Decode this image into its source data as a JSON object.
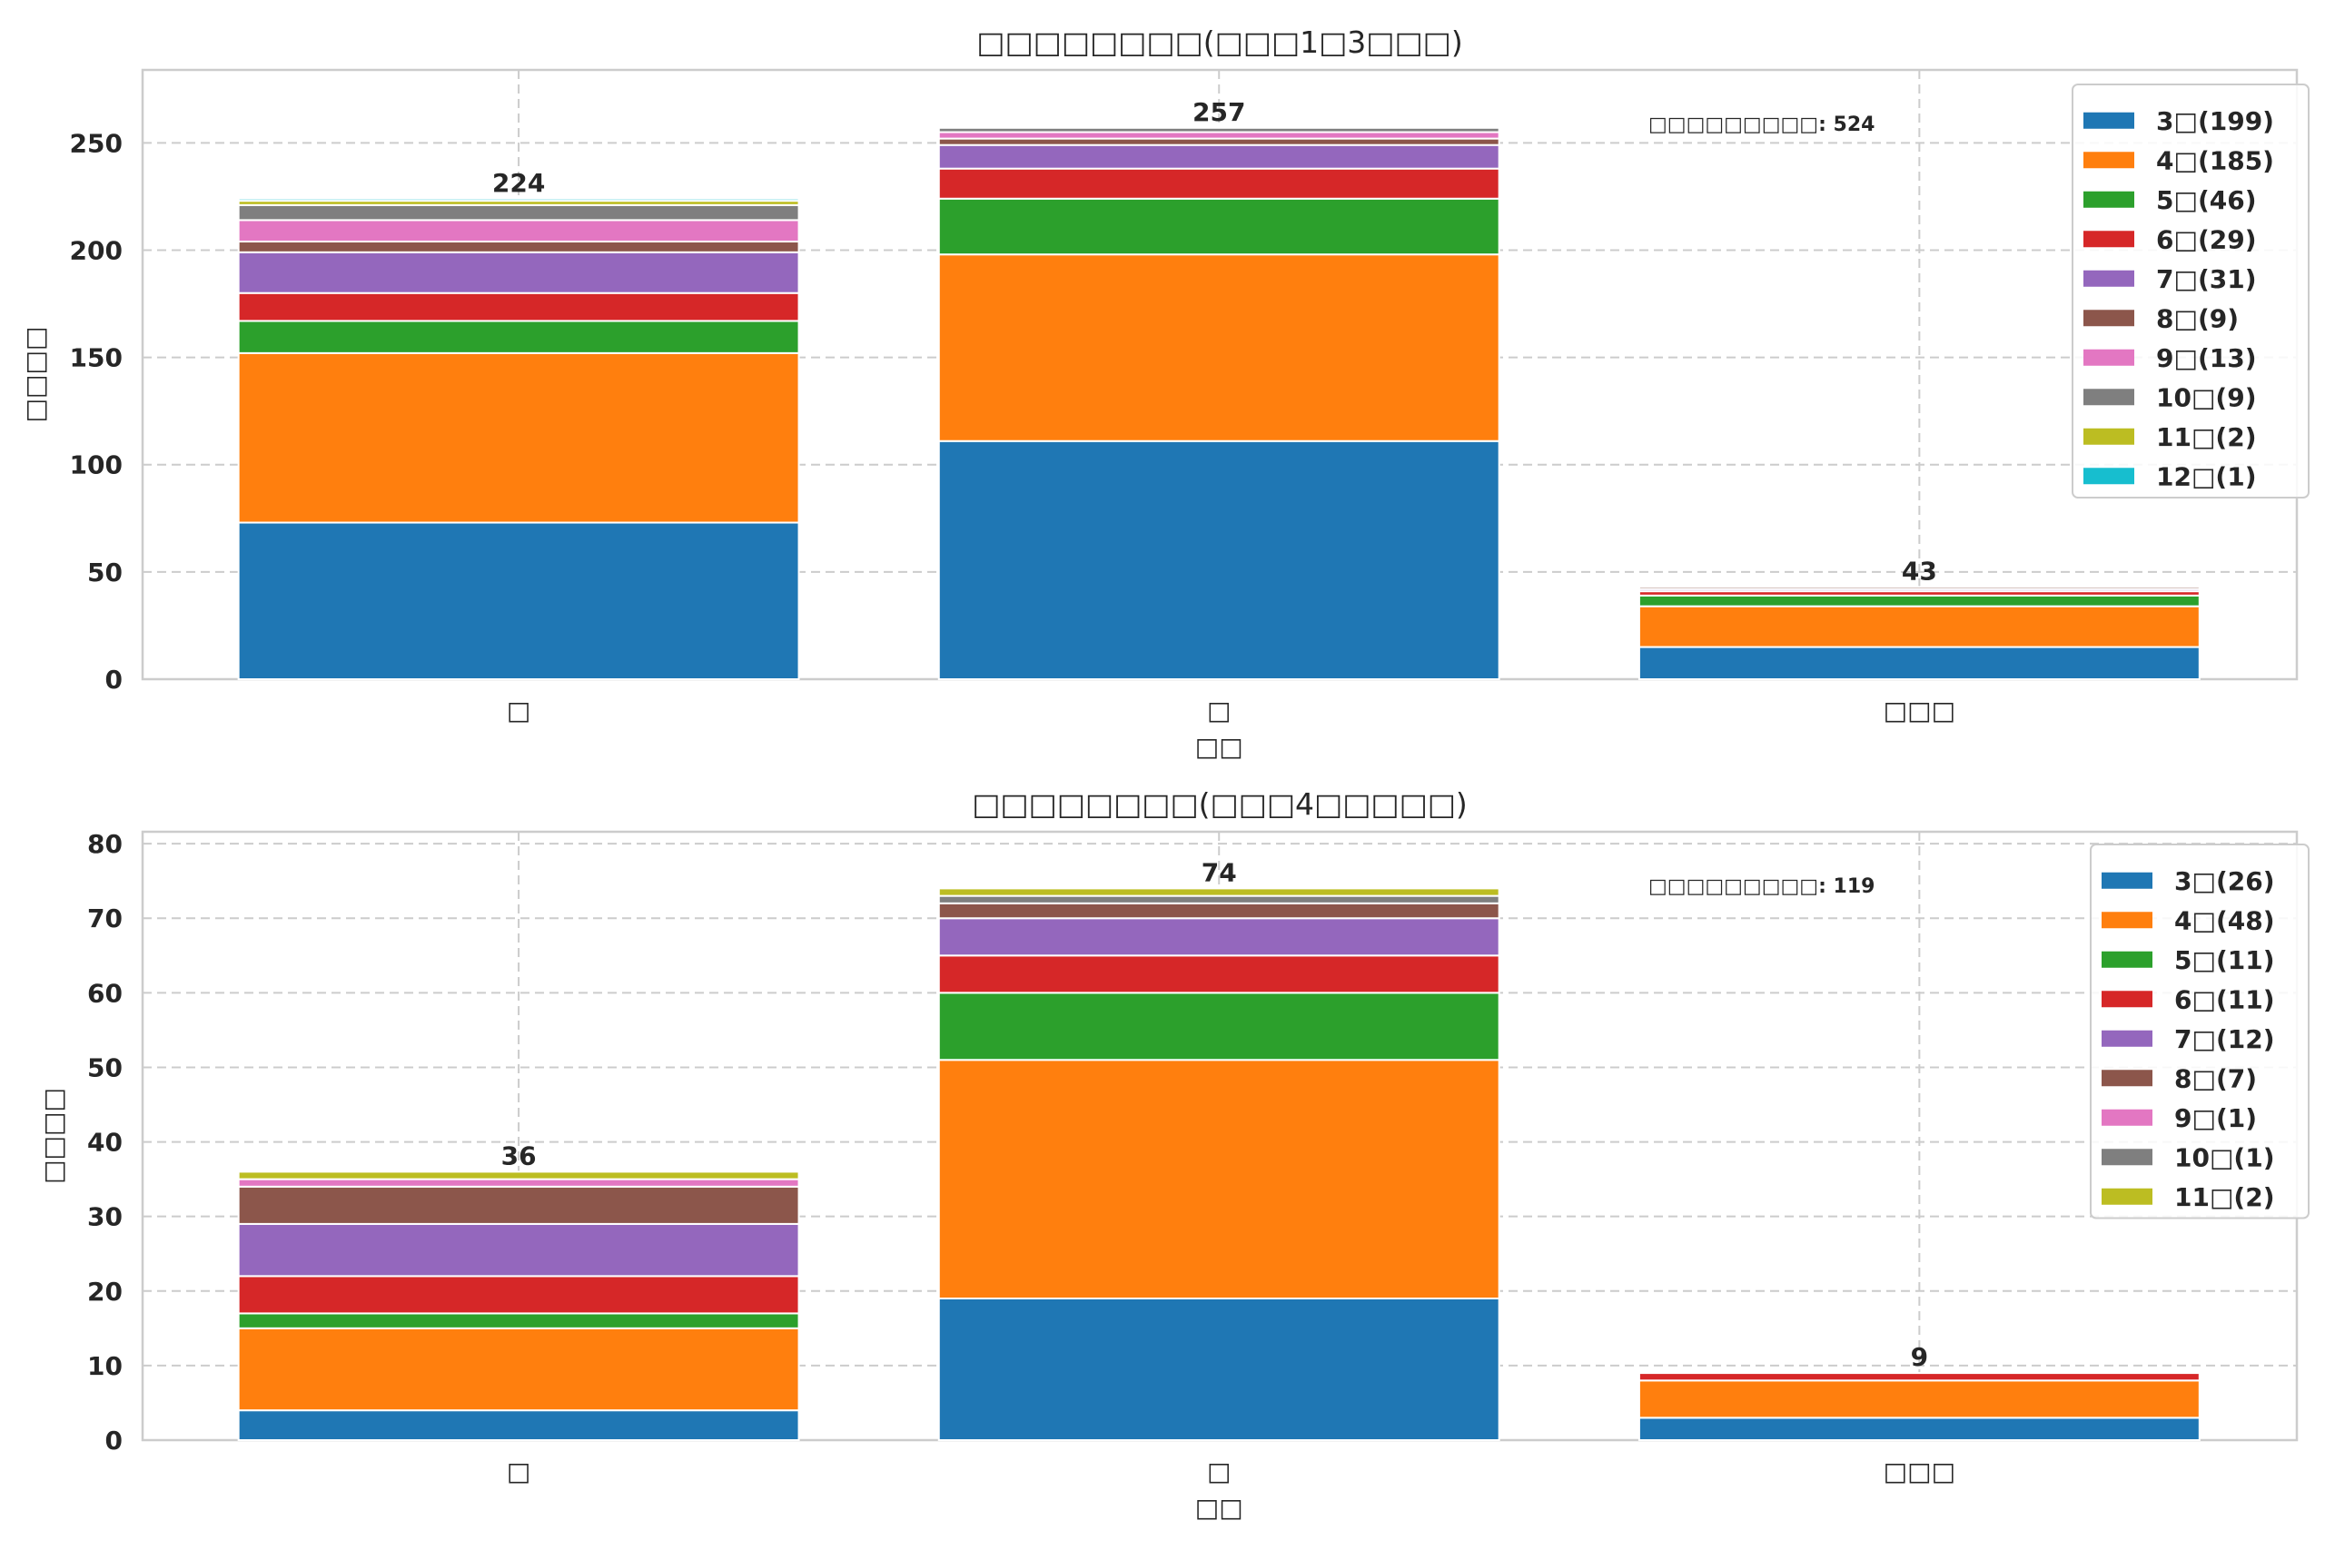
{
  "chart_data": [
    {
      "type": "bar",
      "stacked": true,
      "title": "□□□□□□□□(□□□1□3□□□)",
      "xlabel": "□□",
      "ylabel": "□□□□",
      "categories": [
        "□",
        "□",
        "□□□"
      ],
      "ylim": [
        0,
        284
      ],
      "yticks": [
        0,
        50,
        100,
        150,
        200,
        250
      ],
      "grid": true,
      "legend_position": "top-right",
      "annotation": "□□□□□□□□□: 524",
      "totals": [
        224,
        257,
        43
      ],
      "series": [
        {
          "name": "3□(199)",
          "color": "#1f77b4",
          "values": [
            73,
            111,
            15
          ]
        },
        {
          "name": "4□(185)",
          "color": "#ff7f0e",
          "values": [
            79,
            87,
            19
          ]
        },
        {
          "name": "5□(46)",
          "color": "#2ca02c",
          "values": [
            15,
            26,
            5
          ]
        },
        {
          "name": "6□(29)",
          "color": "#d62728",
          "values": [
            13,
            14,
            2
          ]
        },
        {
          "name": "7□(31)",
          "color": "#9467bd",
          "values": [
            19,
            11,
            1
          ]
        },
        {
          "name": "8□(9)",
          "color": "#8c564b",
          "values": [
            5,
            3,
            1
          ]
        },
        {
          "name": "9□(13)",
          "color": "#e377c2",
          "values": [
            10,
            3,
            0
          ]
        },
        {
          "name": "10□(9)",
          "color": "#7f7f7f",
          "values": [
            7,
            2,
            0
          ]
        },
        {
          "name": "11□(2)",
          "color": "#bcbd22",
          "values": [
            2,
            0,
            0
          ]
        },
        {
          "name": "12□(1)",
          "color": "#17becf",
          "values": [
            1,
            0,
            0
          ]
        }
      ]
    },
    {
      "type": "bar",
      "stacked": true,
      "title": "□□□□□□□□(□□□4□□□□□)",
      "xlabel": "□□",
      "ylabel": "□□□□",
      "categories": [
        "□",
        "□",
        "□□□"
      ],
      "ylim": [
        0,
        81.6
      ],
      "yticks": [
        0,
        10,
        20,
        30,
        40,
        50,
        60,
        70,
        80
      ],
      "grid": true,
      "legend_position": "top-right",
      "annotation": "□□□□□□□□□: 119",
      "totals": [
        36,
        74,
        9
      ],
      "series": [
        {
          "name": "3□(26)",
          "color": "#1f77b4",
          "values": [
            4,
            19,
            3
          ]
        },
        {
          "name": "4□(48)",
          "color": "#ff7f0e",
          "values": [
            11,
            32,
            5
          ]
        },
        {
          "name": "5□(11)",
          "color": "#2ca02c",
          "values": [
            2,
            9,
            0
          ]
        },
        {
          "name": "6□(11)",
          "color": "#d62728",
          "values": [
            5,
            5,
            1
          ]
        },
        {
          "name": "7□(12)",
          "color": "#9467bd",
          "values": [
            7,
            5,
            0
          ]
        },
        {
          "name": "8□(7)",
          "color": "#8c564b",
          "values": [
            5,
            2,
            0
          ]
        },
        {
          "name": "9□(1)",
          "color": "#e377c2",
          "values": [
            1,
            0,
            0
          ]
        },
        {
          "name": "10□(1)",
          "color": "#7f7f7f",
          "values": [
            0,
            1,
            0
          ]
        },
        {
          "name": "11□(2)",
          "color": "#bcbd22",
          "values": [
            1,
            1,
            0
          ]
        }
      ]
    }
  ]
}
